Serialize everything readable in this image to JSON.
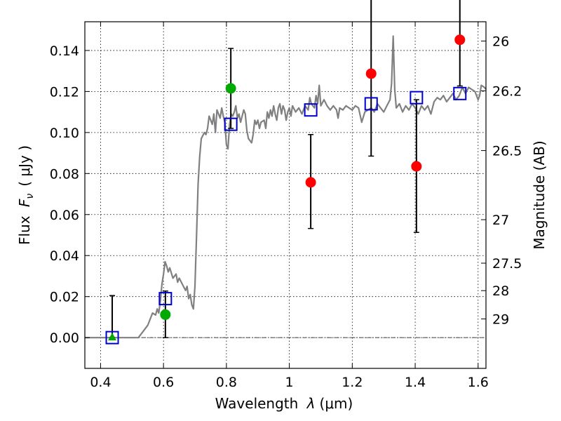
{
  "chart_data": {
    "type": "scatter",
    "xlabel_prefix": "Wavelength ",
    "xlabel_symbol": "λ",
    "xlabel_unit": "(μm)",
    "ylabel_prefix": "Flux ",
    "ylabel_symbol": "F",
    "ylabel_subscript": "ν",
    "ylabel_unit": "( μJy )",
    "y2label": "Magnitude (AB)",
    "xlim": [
      0.35,
      1.625
    ],
    "ylim": [
      -0.015,
      0.154
    ],
    "x_ticks": [
      0.4,
      0.6,
      0.8,
      1.0,
      1.2,
      1.4,
      1.6
    ],
    "x_tick_labels": [
      "0.4",
      "0.6",
      "0.8",
      "1",
      "1.2",
      "1.4",
      "1.6"
    ],
    "y_ticks": [
      0.0,
      0.02,
      0.04,
      0.06,
      0.08,
      0.1,
      0.12,
      0.14
    ],
    "y_tick_labels": [
      "0.00",
      "0.02",
      "0.04",
      "0.06",
      "0.08",
      "0.10",
      "0.12",
      "0.14"
    ],
    "mag_ticks": [
      {
        "label": "26",
        "flux": 0.1446
      },
      {
        "label": "26.2",
        "flux": 0.1203
      },
      {
        "label": "26.5",
        "flux": 0.0912
      },
      {
        "label": "27",
        "flux": 0.0575
      },
      {
        "label": "27.5",
        "flux": 0.0363
      },
      {
        "label": "28",
        "flux": 0.0229
      },
      {
        "label": "29",
        "flux": 0.0091
      }
    ],
    "grid": true,
    "zero_line": true,
    "colors": {
      "template": "#808080",
      "model_square": "#0000cc",
      "detection": "#00aa00",
      "nondetection": "#ff0000",
      "errorbar": "#000000"
    },
    "sed_template": [
      [
        0.35,
        0.0
      ],
      [
        0.5,
        0.0
      ],
      [
        0.52,
        0.0
      ],
      [
        0.53,
        0.002
      ],
      [
        0.55,
        0.006
      ],
      [
        0.565,
        0.012
      ],
      [
        0.575,
        0.011
      ],
      [
        0.58,
        0.014
      ],
      [
        0.585,
        0.012
      ],
      [
        0.59,
        0.018
      ],
      [
        0.595,
        0.026
      ],
      [
        0.6,
        0.031
      ],
      [
        0.605,
        0.037
      ],
      [
        0.61,
        0.035
      ],
      [
        0.615,
        0.032
      ],
      [
        0.62,
        0.034
      ],
      [
        0.63,
        0.029
      ],
      [
        0.64,
        0.031
      ],
      [
        0.645,
        0.027
      ],
      [
        0.65,
        0.029
      ],
      [
        0.66,
        0.026
      ],
      [
        0.67,
        0.023
      ],
      [
        0.675,
        0.025
      ],
      [
        0.68,
        0.019
      ],
      [
        0.685,
        0.021
      ],
      [
        0.69,
        0.016
      ],
      [
        0.695,
        0.014
      ],
      [
        0.7,
        0.025
      ],
      [
        0.705,
        0.05
      ],
      [
        0.71,
        0.075
      ],
      [
        0.715,
        0.088
      ],
      [
        0.72,
        0.097
      ],
      [
        0.73,
        0.1
      ],
      [
        0.735,
        0.099
      ],
      [
        0.74,
        0.102
      ],
      [
        0.745,
        0.108
      ],
      [
        0.75,
        0.106
      ],
      [
        0.755,
        0.104
      ],
      [
        0.76,
        0.109
      ],
      [
        0.765,
        0.1
      ],
      [
        0.77,
        0.111
      ],
      [
        0.775,
        0.109
      ],
      [
        0.78,
        0.107
      ],
      [
        0.785,
        0.112
      ],
      [
        0.79,
        0.108
      ],
      [
        0.795,
        0.105
      ],
      [
        0.8,
        0.094
      ],
      [
        0.805,
        0.092
      ],
      [
        0.81,
        0.104
      ],
      [
        0.815,
        0.109
      ],
      [
        0.82,
        0.108
      ],
      [
        0.825,
        0.11
      ],
      [
        0.83,
        0.113
      ],
      [
        0.835,
        0.107
      ],
      [
        0.84,
        0.109
      ],
      [
        0.845,
        0.105
      ],
      [
        0.85,
        0.108
      ],
      [
        0.855,
        0.111
      ],
      [
        0.86,
        0.109
      ],
      [
        0.865,
        0.101
      ],
      [
        0.87,
        0.097
      ],
      [
        0.88,
        0.095
      ],
      [
        0.885,
        0.099
      ],
      [
        0.89,
        0.106
      ],
      [
        0.895,
        0.104
      ],
      [
        0.9,
        0.106
      ],
      [
        0.905,
        0.102
      ],
      [
        0.91,
        0.105
      ],
      [
        0.92,
        0.106
      ],
      [
        0.925,
        0.102
      ],
      [
        0.93,
        0.11
      ],
      [
        0.935,
        0.107
      ],
      [
        0.94,
        0.111
      ],
      [
        0.945,
        0.108
      ],
      [
        0.95,
        0.113
      ],
      [
        0.955,
        0.109
      ],
      [
        0.96,
        0.106
      ],
      [
        0.965,
        0.112
      ],
      [
        0.97,
        0.114
      ],
      [
        0.975,
        0.109
      ],
      [
        0.98,
        0.113
      ],
      [
        0.985,
        0.111
      ],
      [
        0.99,
        0.106
      ],
      [
        0.995,
        0.11
      ],
      [
        1.0,
        0.112
      ],
      [
        1.005,
        0.108
      ],
      [
        1.01,
        0.113
      ],
      [
        1.02,
        0.11
      ],
      [
        1.03,
        0.112
      ],
      [
        1.04,
        0.109
      ],
      [
        1.05,
        0.113
      ],
      [
        1.06,
        0.111
      ],
      [
        1.065,
        0.117
      ],
      [
        1.07,
        0.114
      ],
      [
        1.08,
        0.112
      ],
      [
        1.085,
        0.118
      ],
      [
        1.09,
        0.114
      ],
      [
        1.095,
        0.123
      ],
      [
        1.1,
        0.113
      ],
      [
        1.11,
        0.116
      ],
      [
        1.12,
        0.113
      ],
      [
        1.13,
        0.111
      ],
      [
        1.14,
        0.113
      ],
      [
        1.15,
        0.111
      ],
      [
        1.155,
        0.107
      ],
      [
        1.16,
        0.112
      ],
      [
        1.17,
        0.111
      ],
      [
        1.18,
        0.113
      ],
      [
        1.19,
        0.112
      ],
      [
        1.2,
        0.111
      ],
      [
        1.21,
        0.113
      ],
      [
        1.22,
        0.112
      ],
      [
        1.23,
        0.105
      ],
      [
        1.24,
        0.11
      ],
      [
        1.25,
        0.111
      ],
      [
        1.26,
        0.112
      ],
      [
        1.27,
        0.11
      ],
      [
        1.28,
        0.114
      ],
      [
        1.29,
        0.112
      ],
      [
        1.3,
        0.11
      ],
      [
        1.31,
        0.113
      ],
      [
        1.32,
        0.116
      ],
      [
        1.325,
        0.124
      ],
      [
        1.33,
        0.147
      ],
      [
        1.335,
        0.121
      ],
      [
        1.34,
        0.112
      ],
      [
        1.35,
        0.114
      ],
      [
        1.36,
        0.11
      ],
      [
        1.37,
        0.113
      ],
      [
        1.38,
        0.111
      ],
      [
        1.39,
        0.114
      ],
      [
        1.4,
        0.112
      ],
      [
        1.41,
        0.109
      ],
      [
        1.42,
        0.113
      ],
      [
        1.43,
        0.111
      ],
      [
        1.44,
        0.113
      ],
      [
        1.45,
        0.109
      ],
      [
        1.46,
        0.115
      ],
      [
        1.47,
        0.117
      ],
      [
        1.48,
        0.116
      ],
      [
        1.49,
        0.118
      ],
      [
        1.5,
        0.115
      ],
      [
        1.51,
        0.117
      ],
      [
        1.52,
        0.119
      ],
      [
        1.53,
        0.116
      ],
      [
        1.54,
        0.118
      ],
      [
        1.55,
        0.122
      ],
      [
        1.56,
        0.119
      ],
      [
        1.57,
        0.122
      ],
      [
        1.58,
        0.121
      ],
      [
        1.59,
        0.12
      ],
      [
        1.6,
        0.116
      ],
      [
        1.605,
        0.118
      ],
      [
        1.61,
        0.123
      ],
      [
        1.62,
        0.122
      ],
      [
        1.625,
        0.121
      ]
    ],
    "model_fluxes": [
      {
        "x": 0.437,
        "y": 0.0
      },
      {
        "x": 0.606,
        "y": 0.019
      },
      {
        "x": 0.814,
        "y": 0.104
      },
      {
        "x": 1.068,
        "y": 0.111
      },
      {
        "x": 1.26,
        "y": 0.114
      },
      {
        "x": 1.404,
        "y": 0.117
      },
      {
        "x": 1.542,
        "y": 0.119
      }
    ],
    "observed": [
      {
        "x": 0.437,
        "y": 0.0,
        "err_low": 0.0,
        "err_high": 0.0205,
        "marker": "triangle",
        "status": "detection"
      },
      {
        "x": 0.606,
        "y": 0.0112,
        "err_low": 0.0112,
        "err_high": 0.0115,
        "marker": "circle",
        "status": "detection"
      },
      {
        "x": 0.814,
        "y": 0.1215,
        "err_low": 0.0195,
        "err_high": 0.0195,
        "marker": "circle",
        "status": "detection"
      },
      {
        "x": 1.068,
        "y": 0.0757,
        "err_low": 0.0225,
        "err_high": 0.0233,
        "marker": "circle",
        "status": "nondetection"
      },
      {
        "x": 1.26,
        "y": 0.1287,
        "err_low": 0.0402,
        "err_high": 0.0403,
        "marker": "circle",
        "status": "nondetection"
      },
      {
        "x": 1.404,
        "y": 0.0835,
        "err_low": 0.0322,
        "err_high": 0.0325,
        "marker": "circle",
        "status": "nondetection"
      },
      {
        "x": 1.542,
        "y": 0.1452,
        "err_low": 0.0225,
        "err_high": 0.0225,
        "marker": "circle",
        "status": "nondetection"
      }
    ]
  }
}
